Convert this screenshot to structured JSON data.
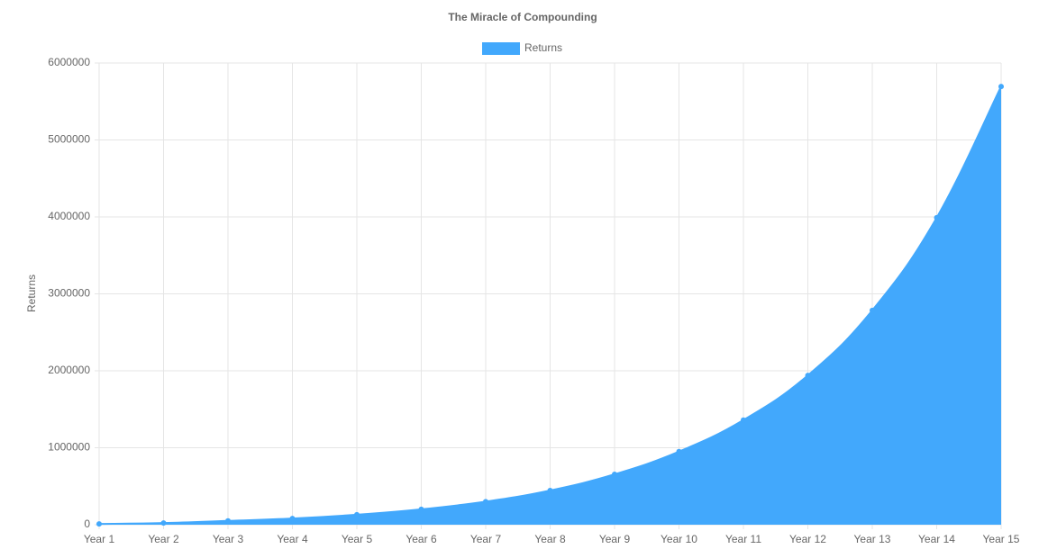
{
  "chart_data": {
    "type": "line",
    "fill": true,
    "title": "The Miracle of Compounding",
    "y_label": "Returns",
    "categories": [
      "Year 1",
      "Year 2",
      "Year 3",
      "Year 4",
      "Year 5",
      "Year 6",
      "Year 7",
      "Year 8",
      "Year 9",
      "Year 10",
      "Year 11",
      "Year 12",
      "Year 13",
      "Year 14",
      "Year 15"
    ],
    "series": [
      {
        "name": "Returns",
        "color": "#42a8fc",
        "values": [
          10000,
          22000,
          50000,
          80000,
          130000,
          200000,
          300000,
          445000,
          655000,
          950000,
          1360000,
          1940000,
          2785000,
          3990000,
          5695000
        ]
      }
    ],
    "ylim": [
      0,
      6000000
    ],
    "yticks": [
      0,
      1000000,
      2000000,
      3000000,
      4000000,
      5000000,
      6000000
    ],
    "grid": true,
    "legend": "top"
  }
}
